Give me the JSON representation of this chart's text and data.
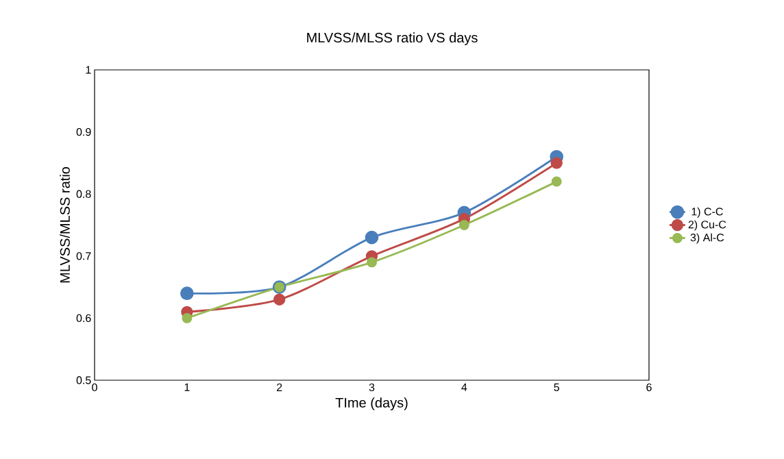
{
  "chart_data": {
    "type": "line",
    "title": "MLVSS/MLSS ratio VS days",
    "xlabel": "TIme (days)",
    "ylabel": "MLVSS/MLSS ratio",
    "x": [
      1,
      2,
      3,
      4,
      5
    ],
    "series": [
      {
        "name": "1) C-C",
        "color": "#4a7ebb",
        "values": [
          0.64,
          0.65,
          0.73,
          0.77,
          0.86
        ]
      },
      {
        "name": "2) Cu-C",
        "color": "#be4b48",
        "values": [
          0.61,
          0.63,
          0.7,
          0.76,
          0.85
        ]
      },
      {
        "name": "3) Al-C",
        "color": "#98b954",
        "values": [
          0.6,
          0.65,
          0.69,
          0.75,
          0.82
        ]
      }
    ],
    "xlim": [
      0,
      6
    ],
    "ylim": [
      0.5,
      1
    ],
    "xticks": [
      0,
      1,
      2,
      3,
      4,
      5,
      6
    ],
    "yticks": [
      0.5,
      0.6,
      0.7,
      0.8,
      0.9,
      1
    ],
    "legend": "right",
    "marker": "circle",
    "line_style": "solid"
  }
}
